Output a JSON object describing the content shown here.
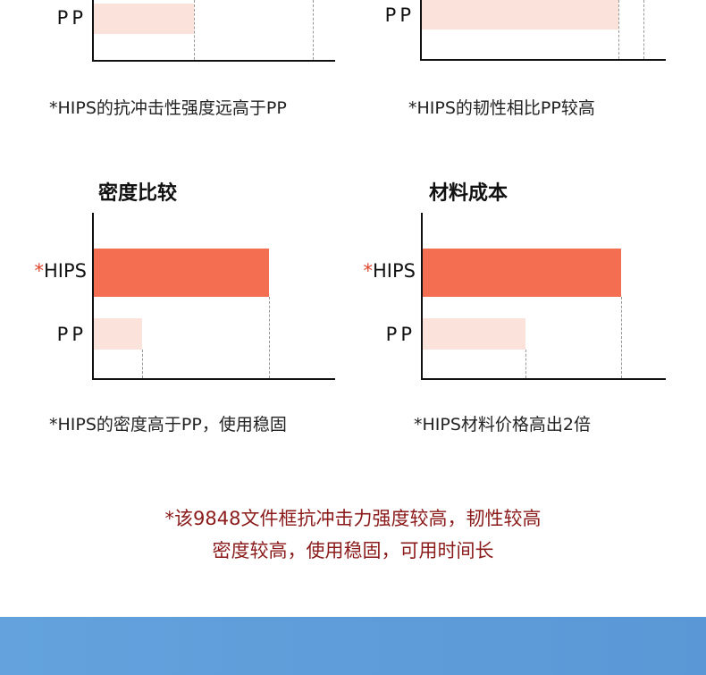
{
  "colors": {
    "hips": "#f46f51",
    "pp": "#fbe3dc",
    "summary": "#8b1a1a",
    "band": "#5e9cd9"
  },
  "chart_data": [
    {
      "type": "bar",
      "orientation": "horizontal",
      "title": "",
      "categories": [
        "PP"
      ],
      "values": [
        41
      ],
      "reference_lines": [
        41,
        90
      ],
      "xlim": [
        0,
        100
      ],
      "note": "*HIPS的抗冲击性强度远高于PP"
    },
    {
      "type": "bar",
      "orientation": "horizontal",
      "title": "",
      "categories": [
        "PP"
      ],
      "values": [
        80
      ],
      "reference_lines": [
        80,
        90
      ],
      "xlim": [
        0,
        100
      ],
      "note": "*HIPS的韧性相比PP较高"
    },
    {
      "type": "bar",
      "orientation": "horizontal",
      "title": "密度比较",
      "categories": [
        "*HIPS",
        "PP"
      ],
      "values": [
        72,
        20
      ],
      "xlim": [
        0,
        100
      ],
      "note": "*HIPS的密度高于PP，使用稳固"
    },
    {
      "type": "bar",
      "orientation": "horizontal",
      "title": "材料成本",
      "categories": [
        "*HIPS",
        "PP"
      ],
      "values": [
        81,
        42
      ],
      "xlim": [
        0,
        100
      ],
      "note": "*HIPS材料价格高出2倍"
    }
  ],
  "summary": {
    "line1": "*该9848文件框抗冲击力强度较高，韧性较高",
    "line2": "密度较高，使用稳固，可用时间长"
  }
}
